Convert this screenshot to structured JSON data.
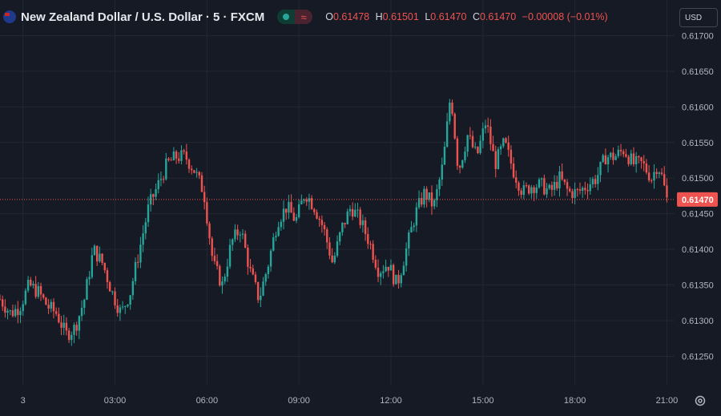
{
  "header": {
    "title": "New Zealand Dollar / U.S. Dollar · 5 · FXCM",
    "ohlc": [
      {
        "key": "O",
        "value": "0.61478"
      },
      {
        "key": "H",
        "value": "0.61501"
      },
      {
        "key": "L",
        "value": "0.61470"
      },
      {
        "key": "C",
        "value": "0.61470"
      }
    ],
    "change": "−0.00008 (−0.01%)",
    "market_status_icon": "green-dot-icon",
    "data_mode_icon": "wave-icon"
  },
  "currency_selector": {
    "value": "USD"
  },
  "price_tag": "0.61470",
  "colors": {
    "background": "#161a25",
    "up": "#26a69a",
    "down": "#ef5350",
    "grid": "#242733",
    "axis_text": "#b2b5be"
  },
  "chart_data": {
    "type": "candlestick",
    "symbol": "NZDUSD",
    "interval": "5",
    "y_axis": {
      "ticks": [
        0.6125,
        0.613,
        0.6135,
        0.614,
        0.6145,
        0.615,
        0.6155,
        0.616,
        0.6165,
        0.617
      ],
      "tick_labels": [
        "0.61250",
        "0.61300",
        "0.61350",
        "0.61400",
        "0.61450",
        "0.61500",
        "0.61550",
        "0.61600",
        "0.61650",
        "0.61700"
      ],
      "range": [
        0.6121,
        0.6175
      ]
    },
    "x_axis": {
      "tick_labels": [
        "3",
        "03:00",
        "06:00",
        "09:00",
        "12:00",
        "15:00",
        "18:00",
        "21:00"
      ],
      "tick_times_h": [
        0,
        3,
        6,
        9,
        12,
        15,
        18,
        21
      ],
      "range_h": [
        -0.75,
        21.25
      ]
    },
    "last_price": 0.6147,
    "close_path": [
      [
        -0.75,
        0.6133
      ],
      [
        -0.4,
        0.6131
      ],
      [
        -0.1,
        0.6132
      ],
      [
        0.2,
        0.6135
      ],
      [
        0.5,
        0.6134
      ],
      [
        0.8,
        0.6132
      ],
      [
        1.1,
        0.6131
      ],
      [
        1.4,
        0.6128
      ],
      [
        1.7,
        0.6129
      ],
      [
        2.0,
        0.6133
      ],
      [
        2.3,
        0.614
      ],
      [
        2.6,
        0.6138
      ],
      [
        2.9,
        0.6134
      ],
      [
        3.2,
        0.6131
      ],
      [
        3.5,
        0.6134
      ],
      [
        3.8,
        0.614
      ],
      [
        4.1,
        0.6146
      ],
      [
        4.4,
        0.6149
      ],
      [
        4.7,
        0.6152
      ],
      [
        5.0,
        0.6153
      ],
      [
        5.3,
        0.6153
      ],
      [
        5.6,
        0.6151
      ],
      [
        5.9,
        0.6148
      ],
      [
        6.2,
        0.6138
      ],
      [
        6.5,
        0.6135
      ],
      [
        6.8,
        0.6141
      ],
      [
        7.1,
        0.6143
      ],
      [
        7.4,
        0.6137
      ],
      [
        7.7,
        0.6133
      ],
      [
        8.0,
        0.6138
      ],
      [
        8.3,
        0.6144
      ],
      [
        8.6,
        0.6146
      ],
      [
        8.9,
        0.6144
      ],
      [
        9.2,
        0.6148
      ],
      [
        9.5,
        0.6146
      ],
      [
        9.8,
        0.6143
      ],
      [
        10.1,
        0.6138
      ],
      [
        10.4,
        0.6143
      ],
      [
        10.7,
        0.6146
      ],
      [
        11.0,
        0.6144
      ],
      [
        11.3,
        0.6141
      ],
      [
        11.6,
        0.6137
      ],
      [
        11.9,
        0.6138
      ],
      [
        12.2,
        0.6135
      ],
      [
        12.5,
        0.614
      ],
      [
        12.8,
        0.6145
      ],
      [
        13.1,
        0.6148
      ],
      [
        13.4,
        0.6146
      ],
      [
        13.7,
        0.6152
      ],
      [
        13.95,
        0.6162
      ],
      [
        14.2,
        0.6151
      ],
      [
        14.5,
        0.6156
      ],
      [
        14.8,
        0.6153
      ],
      [
        15.1,
        0.6158
      ],
      [
        15.4,
        0.6152
      ],
      [
        15.7,
        0.6155
      ],
      [
        16.0,
        0.6151
      ],
      [
        16.3,
        0.6148
      ],
      [
        16.6,
        0.6149
      ],
      [
        16.9,
        0.6149
      ],
      [
        17.2,
        0.6148
      ],
      [
        17.5,
        0.615
      ],
      [
        17.8,
        0.6148
      ],
      [
        18.1,
        0.6148
      ],
      [
        18.4,
        0.6149
      ],
      [
        18.7,
        0.615
      ],
      [
        19.0,
        0.6153
      ],
      [
        19.3,
        0.6153
      ],
      [
        19.6,
        0.6154
      ],
      [
        19.9,
        0.6152
      ],
      [
        20.2,
        0.6152
      ],
      [
        20.5,
        0.615
      ],
      [
        20.7,
        0.6152
      ],
      [
        20.85,
        0.615
      ],
      [
        21.0,
        0.6147
      ]
    ]
  }
}
